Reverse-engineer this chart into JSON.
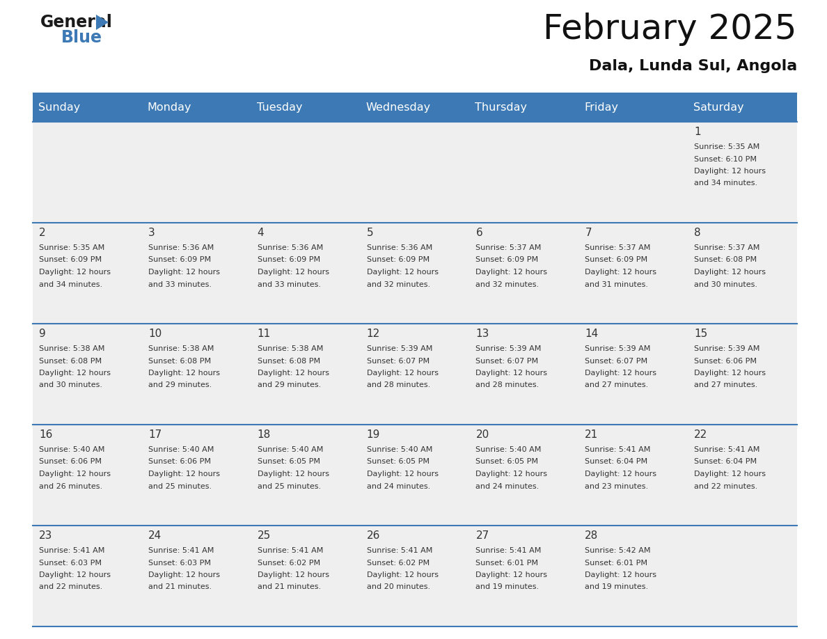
{
  "title": "February 2025",
  "subtitle": "Dala, Lunda Sul, Angola",
  "header_color": "#3d7ab5",
  "header_text_color": "#ffffff",
  "cell_bg_color": "#efefef",
  "border_color": "#3d7ab5",
  "text_color": "#333333",
  "days_of_week": [
    "Sunday",
    "Monday",
    "Tuesday",
    "Wednesday",
    "Thursday",
    "Friday",
    "Saturday"
  ],
  "weeks": [
    [
      {
        "day": null
      },
      {
        "day": null
      },
      {
        "day": null
      },
      {
        "day": null
      },
      {
        "day": null
      },
      {
        "day": null
      },
      {
        "day": 1,
        "sunrise": "5:35 AM",
        "sunset": "6:10 PM",
        "daylight": "12 hours",
        "daylight2": "and 34 minutes."
      }
    ],
    [
      {
        "day": 2,
        "sunrise": "5:35 AM",
        "sunset": "6:09 PM",
        "daylight": "12 hours",
        "daylight2": "and 34 minutes."
      },
      {
        "day": 3,
        "sunrise": "5:36 AM",
        "sunset": "6:09 PM",
        "daylight": "12 hours",
        "daylight2": "and 33 minutes."
      },
      {
        "day": 4,
        "sunrise": "5:36 AM",
        "sunset": "6:09 PM",
        "daylight": "12 hours",
        "daylight2": "and 33 minutes."
      },
      {
        "day": 5,
        "sunrise": "5:36 AM",
        "sunset": "6:09 PM",
        "daylight": "12 hours",
        "daylight2": "and 32 minutes."
      },
      {
        "day": 6,
        "sunrise": "5:37 AM",
        "sunset": "6:09 PM",
        "daylight": "12 hours",
        "daylight2": "and 32 minutes."
      },
      {
        "day": 7,
        "sunrise": "5:37 AM",
        "sunset": "6:09 PM",
        "daylight": "12 hours",
        "daylight2": "and 31 minutes."
      },
      {
        "day": 8,
        "sunrise": "5:37 AM",
        "sunset": "6:08 PM",
        "daylight": "12 hours",
        "daylight2": "and 30 minutes."
      }
    ],
    [
      {
        "day": 9,
        "sunrise": "5:38 AM",
        "sunset": "6:08 PM",
        "daylight": "12 hours",
        "daylight2": "and 30 minutes."
      },
      {
        "day": 10,
        "sunrise": "5:38 AM",
        "sunset": "6:08 PM",
        "daylight": "12 hours",
        "daylight2": "and 29 minutes."
      },
      {
        "day": 11,
        "sunrise": "5:38 AM",
        "sunset": "6:08 PM",
        "daylight": "12 hours",
        "daylight2": "and 29 minutes."
      },
      {
        "day": 12,
        "sunrise": "5:39 AM",
        "sunset": "6:07 PM",
        "daylight": "12 hours",
        "daylight2": "and 28 minutes."
      },
      {
        "day": 13,
        "sunrise": "5:39 AM",
        "sunset": "6:07 PM",
        "daylight": "12 hours",
        "daylight2": "and 28 minutes."
      },
      {
        "day": 14,
        "sunrise": "5:39 AM",
        "sunset": "6:07 PM",
        "daylight": "12 hours",
        "daylight2": "and 27 minutes."
      },
      {
        "day": 15,
        "sunrise": "5:39 AM",
        "sunset": "6:06 PM",
        "daylight": "12 hours",
        "daylight2": "and 27 minutes."
      }
    ],
    [
      {
        "day": 16,
        "sunrise": "5:40 AM",
        "sunset": "6:06 PM",
        "daylight": "12 hours",
        "daylight2": "and 26 minutes."
      },
      {
        "day": 17,
        "sunrise": "5:40 AM",
        "sunset": "6:06 PM",
        "daylight": "12 hours",
        "daylight2": "and 25 minutes."
      },
      {
        "day": 18,
        "sunrise": "5:40 AM",
        "sunset": "6:05 PM",
        "daylight": "12 hours",
        "daylight2": "and 25 minutes."
      },
      {
        "day": 19,
        "sunrise": "5:40 AM",
        "sunset": "6:05 PM",
        "daylight": "12 hours",
        "daylight2": "and 24 minutes."
      },
      {
        "day": 20,
        "sunrise": "5:40 AM",
        "sunset": "6:05 PM",
        "daylight": "12 hours",
        "daylight2": "and 24 minutes."
      },
      {
        "day": 21,
        "sunrise": "5:41 AM",
        "sunset": "6:04 PM",
        "daylight": "12 hours",
        "daylight2": "and 23 minutes."
      },
      {
        "day": 22,
        "sunrise": "5:41 AM",
        "sunset": "6:04 PM",
        "daylight": "12 hours",
        "daylight2": "and 22 minutes."
      }
    ],
    [
      {
        "day": 23,
        "sunrise": "5:41 AM",
        "sunset": "6:03 PM",
        "daylight": "12 hours",
        "daylight2": "and 22 minutes."
      },
      {
        "day": 24,
        "sunrise": "5:41 AM",
        "sunset": "6:03 PM",
        "daylight": "12 hours",
        "daylight2": "and 21 minutes."
      },
      {
        "day": 25,
        "sunrise": "5:41 AM",
        "sunset": "6:02 PM",
        "daylight": "12 hours",
        "daylight2": "and 21 minutes."
      },
      {
        "day": 26,
        "sunrise": "5:41 AM",
        "sunset": "6:02 PM",
        "daylight": "12 hours",
        "daylight2": "and 20 minutes."
      },
      {
        "day": 27,
        "sunrise": "5:41 AM",
        "sunset": "6:01 PM",
        "daylight": "12 hours",
        "daylight2": "and 19 minutes."
      },
      {
        "day": 28,
        "sunrise": "5:42 AM",
        "sunset": "6:01 PM",
        "daylight": "12 hours",
        "daylight2": "and 19 minutes."
      },
      {
        "day": null
      }
    ]
  ],
  "fig_width": 11.88,
  "fig_height": 9.18,
  "dpi": 100
}
